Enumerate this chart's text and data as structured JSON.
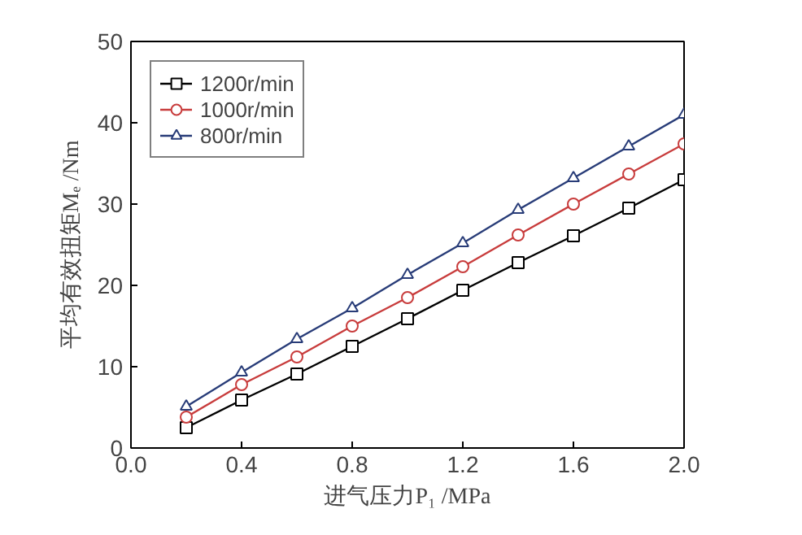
{
  "chart_data": {
    "type": "line",
    "xlabel": "进气压力P₁ /MPa",
    "ylabel": "平均有效扭矩Mₑ /Nm",
    "x": [
      0.2,
      0.4,
      0.6,
      0.8,
      1.0,
      1.2,
      1.4,
      1.6,
      1.8,
      2.0
    ],
    "series": [
      {
        "name": "1200r/min",
        "color": "#000000",
        "marker": "square",
        "values": [
          2.5,
          5.9,
          9.1,
          12.5,
          15.9,
          19.4,
          22.8,
          26.1,
          29.5,
          33.0
        ]
      },
      {
        "name": "1000r/min",
        "color": "#c83c3c",
        "marker": "circle",
        "values": [
          3.8,
          7.8,
          11.2,
          15.0,
          18.5,
          22.3,
          26.2,
          30.0,
          33.7,
          37.4
        ]
      },
      {
        "name": "800r/min",
        "color": "#283c78",
        "marker": "triangle",
        "values": [
          5.1,
          9.3,
          13.4,
          17.2,
          21.3,
          25.2,
          29.3,
          33.2,
          37.1,
          41.0
        ]
      }
    ],
    "xlim": [
      0.0,
      2.0
    ],
    "ylim": [
      0,
      50
    ],
    "xticks": [
      {
        "value": 0.0,
        "label": "0.0"
      },
      {
        "value": 0.4,
        "label": "0.4"
      },
      {
        "value": 0.8,
        "label": "0.8"
      },
      {
        "value": 1.2,
        "label": "1.2"
      },
      {
        "value": 1.6,
        "label": "1.6"
      },
      {
        "value": 2.0,
        "label": "2.0"
      }
    ],
    "yticks": [
      0,
      10,
      20,
      30,
      40,
      50
    ],
    "legend": "top left",
    "grid": false,
    "line_style": "solid"
  }
}
